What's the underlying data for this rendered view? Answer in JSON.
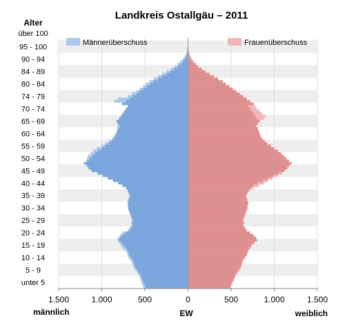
{
  "chart_data": {
    "type": "bar",
    "orientation": "horizontal",
    "title": "Landkreis Ostallgäu – 2011",
    "y_axis_title": "Alter",
    "xlabel": "EW",
    "left_label": "männlich",
    "right_label": "weiblich",
    "xlim": [
      -1500,
      1500
    ],
    "x_ticks": [
      -1500,
      -1000,
      -500,
      0,
      500,
      1000,
      1500
    ],
    "x_tick_labels": [
      "1.500",
      "1.000",
      "500",
      "0",
      "500",
      "1.000",
      "1.500"
    ],
    "age_group_labels": [
      "unter 5",
      "5 - 9",
      "10 - 14",
      "15 - 19",
      "20 - 24",
      "25 - 29",
      "30 - 34",
      "35 - 39",
      "40 - 44",
      "45 - 49",
      "50 - 54",
      "55 - 59",
      "60 - 64",
      "65 - 69",
      "70 - 74",
      "74 - 79",
      "80 - 84",
      "84 - 89",
      "90 - 94",
      "95 - 100",
      "über 100"
    ],
    "legend": [
      {
        "label": "Männerüberschuss",
        "color": "#aac8ee",
        "position": "top-left"
      },
      {
        "label": "Frauenüberschuss",
        "color": "#efb6b9",
        "position": "top-right"
      }
    ],
    "colors": {
      "male": "#7aa6dd",
      "female": "#de8f90",
      "male_surplus": "#aac8ee",
      "female_surplus": "#efb6b9",
      "band": "#eeeeee"
    },
    "ages_from_0": "single years, age 0 (bottom) to age 100 (top)",
    "male": [
      520,
      530,
      540,
      550,
      560,
      570,
      590,
      610,
      630,
      640,
      650,
      670,
      690,
      700,
      710,
      730,
      760,
      780,
      800,
      820,
      810,
      790,
      760,
      700,
      680,
      660,
      660,
      650,
      660,
      670,
      680,
      690,
      700,
      700,
      700,
      700,
      690,
      680,
      690,
      700,
      720,
      760,
      810,
      870,
      930,
      990,
      1050,
      1120,
      1160,
      1180,
      1210,
      1180,
      1170,
      1160,
      1130,
      1100,
      1060,
      1010,
      960,
      920,
      880,
      860,
      840,
      830,
      820,
      820,
      820,
      830,
      800,
      780,
      760,
      740,
      720,
      700,
      770,
      860,
      820,
      700,
      650,
      600,
      560,
      520,
      490,
      450,
      400,
      350,
      300,
      250,
      200,
      160,
      120,
      90,
      60,
      40,
      25,
      15,
      10,
      6,
      4,
      2,
      1
    ],
    "female": [
      490,
      500,
      515,
      530,
      540,
      550,
      570,
      590,
      610,
      620,
      630,
      640,
      660,
      680,
      690,
      700,
      720,
      740,
      770,
      800,
      790,
      760,
      720,
      680,
      660,
      640,
      650,
      640,
      650,
      660,
      670,
      680,
      690,
      690,
      700,
      690,
      680,
      670,
      690,
      720,
      760,
      820,
      880,
      930,
      980,
      1040,
      1090,
      1120,
      1150,
      1170,
      1200,
      1170,
      1140,
      1110,
      1080,
      1040,
      1000,
      960,
      920,
      890,
      860,
      840,
      830,
      820,
      810,
      790,
      810,
      840,
      880,
      900,
      860,
      830,
      800,
      780,
      760,
      720,
      680,
      640,
      600,
      560,
      520,
      480,
      440,
      400,
      350,
      300,
      250,
      200,
      160,
      120,
      90,
      60,
      40,
      25,
      15,
      10,
      6,
      4,
      2,
      1,
      0
    ]
  }
}
